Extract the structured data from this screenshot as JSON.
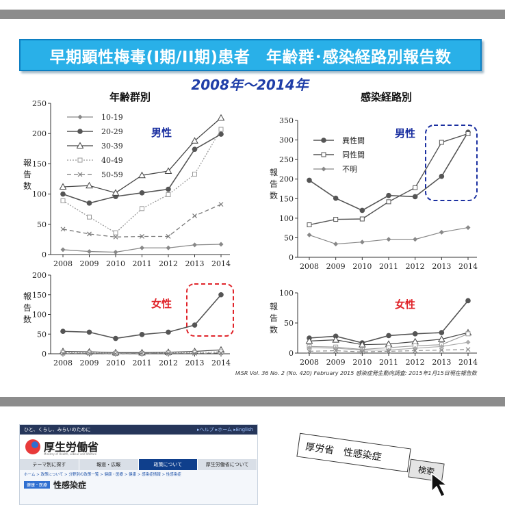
{
  "title": "早期顕性梅毒(I期/II期)患者　年齢群･感染経路別報告数",
  "year_range": "2008年～2014年",
  "col_age": "年齢群別",
  "col_route": "感染経路別",
  "ylabel": "報告数",
  "male": "男性",
  "female": "女性",
  "source": "IASR Vol. 36 No. 2 (No. 420)  February 2015    感染症発生動向調査: 2015年1月15日現在報告数",
  "colors": {
    "banner": "#29b0e8",
    "male_label": "#1a2fa0",
    "female_label": "#e0242a",
    "highlight_male": "#1a2fa0",
    "highlight_female": "#e0242a"
  },
  "chart_data": [
    {
      "type": "line",
      "x": [
        2008,
        2009,
        2010,
        2011,
        2012,
        2013,
        2014
      ],
      "ylim": [
        0,
        250
      ],
      "yticks": [
        0,
        50,
        100,
        150,
        200,
        250
      ],
      "series": [
        {
          "name": "10-19",
          "values": [
            8,
            5,
            4,
            11,
            11,
            16,
            17
          ]
        },
        {
          "name": "20-29",
          "values": [
            100,
            85,
            96,
            102,
            108,
            174,
            199
          ]
        },
        {
          "name": "30-39",
          "values": [
            112,
            114,
            102,
            131,
            138,
            188,
            226
          ]
        },
        {
          "name": "40-49",
          "values": [
            89,
            62,
            36,
            76,
            99,
            133,
            207
          ]
        },
        {
          "name": "50-59",
          "values": [
            42,
            34,
            29,
            30,
            30,
            64,
            83
          ]
        }
      ]
    },
    {
      "type": "line",
      "x": [
        2008,
        2009,
        2010,
        2011,
        2012,
        2013,
        2014
      ],
      "ylim": [
        0,
        350
      ],
      "yticks": [
        0,
        50,
        100,
        150,
        200,
        250,
        300,
        350
      ],
      "series": [
        {
          "name": "異性間",
          "values": [
            197,
            151,
            120,
            158,
            155,
            207,
            320
          ]
        },
        {
          "name": "同性間",
          "values": [
            83,
            97,
            98,
            142,
            178,
            294,
            316
          ]
        },
        {
          "name": "不明",
          "values": [
            57,
            34,
            39,
            46,
            46,
            64,
            76
          ]
        }
      ]
    },
    {
      "type": "line",
      "x": [
        2008,
        2009,
        2010,
        2011,
        2012,
        2013,
        2014
      ],
      "ylim": [
        0,
        200
      ],
      "yticks": [
        0,
        50,
        100,
        150,
        200
      ],
      "series": [
        {
          "values": [
            57,
            55,
            39,
            49,
            55,
            73,
            150
          ]
        },
        {
          "values": [
            6,
            5,
            3,
            3,
            4,
            6,
            10
          ]
        },
        {
          "values": [
            3,
            2,
            1,
            1,
            2,
            3,
            5
          ]
        },
        {
          "values": [
            1,
            1,
            0,
            1,
            1,
            1,
            2
          ]
        }
      ]
    },
    {
      "type": "line",
      "x": [
        2008,
        2009,
        2010,
        2011,
        2012,
        2013,
        2014
      ],
      "ylim": [
        0,
        100
      ],
      "yticks": [
        0,
        50,
        100
      ],
      "series": [
        {
          "values": [
            25,
            28,
            17,
            29,
            32,
            34,
            87
          ]
        },
        {
          "values": [
            20,
            22,
            14,
            15,
            19,
            23,
            34
          ]
        },
        {
          "values": [
            11,
            10,
            6,
            9,
            12,
            14,
            32
          ]
        },
        {
          "values": [
            9,
            8,
            5,
            5,
            8,
            11,
            18
          ]
        },
        {
          "values": [
            3,
            4,
            2,
            3,
            4,
            5,
            6
          ]
        }
      ]
    }
  ],
  "website": {
    "top_left": "ひと、くらし、みらいのために",
    "top_right": "▸ヘルプ  ▸ホーム  ▸English",
    "logo_text": "厚生労働省",
    "logo_sub": "Ministry of Health, Labour and Welfare",
    "nav": [
      "テーマ別に探す",
      "報道・広報",
      "政策について",
      "厚生労働省について"
    ],
    "breadcrumb": "ホーム > 政策について > 分野別の政策一覧 > 健康・医療 > 健康 > 感染症情報 > 性感染症",
    "tag": "健康・医療",
    "page_title": "性感染症"
  },
  "search": {
    "query": "厚労省　性感染症",
    "button": "検索"
  }
}
